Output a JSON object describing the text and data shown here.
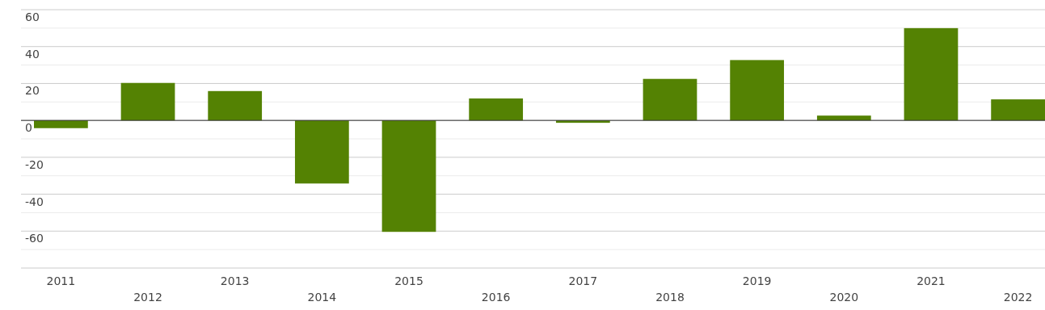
{
  "chart_data": {
    "type": "bar",
    "categories": [
      "2011",
      "2012",
      "2013",
      "2014",
      "2015",
      "2016",
      "2017",
      "2018",
      "2019",
      "2020",
      "2021",
      "2022"
    ],
    "values": [
      -4.2,
      20.3,
      15.9,
      -34.2,
      -60.4,
      11.9,
      -1.3,
      22.5,
      32.7,
      2.6,
      50.0,
      11.4
    ],
    "color": "#548203",
    "ylim": [
      -80,
      60
    ],
    "yticks": [
      {
        "value": -80,
        "label": null
      },
      {
        "value": -70,
        "label": null
      },
      -60,
      {
        "value": -50,
        "label": null
      },
      -40,
      {
        "value": -30,
        "label": null
      },
      -20,
      {
        "value": -10,
        "label": null
      },
      0,
      {
        "value": 10,
        "label": null
      },
      20,
      {
        "value": 30,
        "label": null
      },
      40,
      {
        "value": 50,
        "label": null
      },
      60
    ],
    "grid": "y"
  }
}
